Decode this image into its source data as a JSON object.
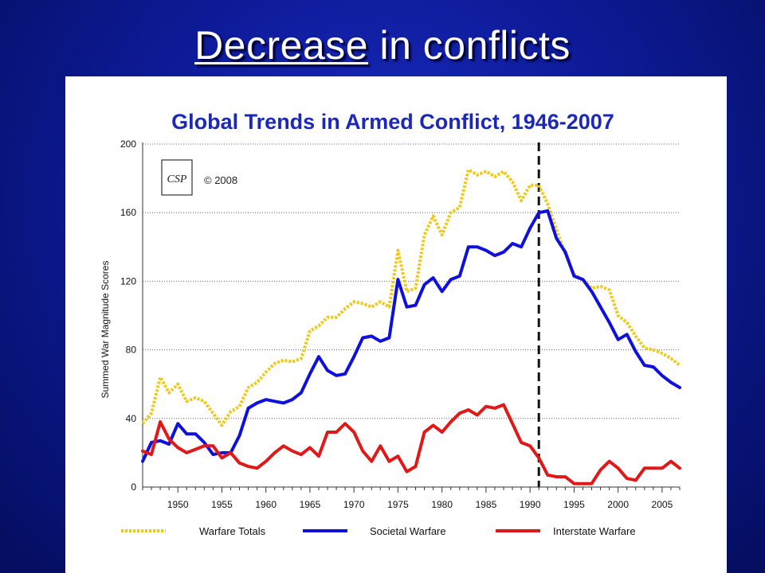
{
  "slide": {
    "title_underlined": "Decrease",
    "title_rest": " in conflicts"
  },
  "chart_data": {
    "type": "line",
    "title": "Global Trends in Armed Conflict, 1946-2007",
    "ylabel": "Summed War Magnitude Scores",
    "xlabel": "",
    "xlim": [
      1946,
      2007
    ],
    "ylim": [
      0,
      200
    ],
    "yticks": [
      0,
      40,
      80,
      120,
      160,
      200
    ],
    "xticks": [
      1950,
      1955,
      1960,
      1965,
      1970,
      1975,
      1980,
      1985,
      1990,
      1995,
      2000,
      2005
    ],
    "grid": "horizontal-dotted",
    "vertical_marker": {
      "x": 1991,
      "style": "dashed"
    },
    "logo_text": "CSP",
    "copyright": "© 2008",
    "legend_position": "bottom",
    "x": [
      1946,
      1947,
      1948,
      1949,
      1950,
      1951,
      1952,
      1953,
      1954,
      1955,
      1956,
      1957,
      1958,
      1959,
      1960,
      1961,
      1962,
      1963,
      1964,
      1965,
      1966,
      1967,
      1968,
      1969,
      1970,
      1971,
      1972,
      1973,
      1974,
      1975,
      1976,
      1977,
      1978,
      1979,
      1980,
      1981,
      1982,
      1983,
      1984,
      1985,
      1986,
      1987,
      1988,
      1989,
      1990,
      1991,
      1992,
      1993,
      1994,
      1995,
      1996,
      1997,
      1998,
      1999,
      2000,
      2001,
      2002,
      2003,
      2004,
      2005,
      2006,
      2007
    ],
    "series": [
      {
        "name": "Warfare Totals",
        "color": "#f0c814",
        "style": "dotted",
        "values": [
          37,
          43,
          64,
          55,
          60,
          50,
          52,
          50,
          43,
          36,
          44,
          47,
          58,
          61,
          67,
          72,
          74,
          73,
          75,
          91,
          94,
          99,
          99,
          104,
          108,
          107,
          105,
          108,
          105,
          138,
          114,
          116,
          147,
          158,
          147,
          160,
          163,
          185,
          182,
          184,
          181,
          184,
          178,
          167,
          176,
          176,
          165,
          150,
          136,
          124,
          121,
          116,
          117,
          115,
          100,
          96,
          88,
          81,
          80,
          78,
          75,
          71
        ]
      },
      {
        "name": "Societal Warfare",
        "color": "#1010dd",
        "style": "solid",
        "values": [
          15,
          26,
          27,
          25,
          37,
          31,
          31,
          26,
          19,
          20,
          20,
          30,
          46,
          49,
          51,
          50,
          49,
          51,
          55,
          66,
          76,
          68,
          65,
          66,
          76,
          87,
          88,
          85,
          87,
          121,
          105,
          106,
          118,
          122,
          114,
          121,
          123,
          140,
          140,
          138,
          135,
          137,
          142,
          140,
          151,
          160,
          161,
          145,
          137,
          123,
          121,
          114,
          105,
          96,
          86,
          89,
          79,
          71,
          70,
          65,
          61,
          58
        ]
      },
      {
        "name": "Interstate Warfare",
        "color": "#e01818",
        "style": "solid",
        "values": [
          21,
          19,
          38,
          28,
          23,
          20,
          22,
          24,
          24,
          17,
          20,
          14,
          12,
          11,
          15,
          20,
          24,
          21,
          19,
          23,
          18,
          32,
          32,
          37,
          32,
          21,
          15,
          24,
          15,
          18,
          9,
          12,
          32,
          36,
          32,
          38,
          43,
          45,
          42,
          47,
          46,
          48,
          37,
          26,
          24,
          17,
          7,
          6,
          6,
          2,
          2,
          2,
          10,
          15,
          11,
          5,
          4,
          11,
          11,
          11,
          15,
          11
        ]
      }
    ]
  }
}
